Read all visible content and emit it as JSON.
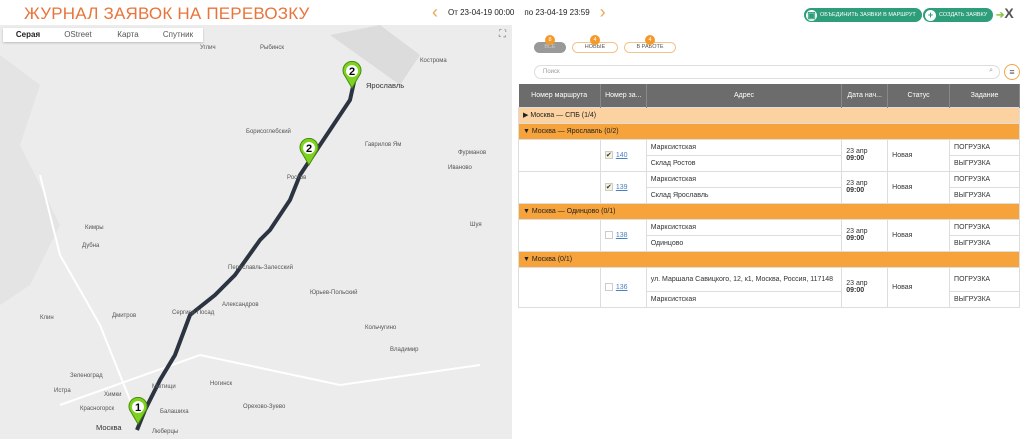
{
  "header": {
    "title": "ЖУРНАЛ ЗАЯВОК НА ПЕРЕВОЗКУ",
    "date_from": "От 23-04-19 00:00",
    "date_to": "по 23-04-19 23:59",
    "merge_button": "ОБЪЕДИНИТЬ ЗАЯВКИ В МАРШРУТ",
    "create_button": "СОЗДАТЬ ЗАЯВКУ"
  },
  "map": {
    "tabs": [
      "Серая",
      "OStreet",
      "Карта",
      "Спутник"
    ],
    "active_tab": "Серая",
    "cities": [
      "Кострома",
      "Ярославль",
      "Иваново",
      "Гаврилов Ям",
      "Борисоглебский",
      "Ростов",
      "Переславль-Залесский",
      "Сергиев Посад",
      "Александров",
      "Дмитров",
      "Клин",
      "Кимры",
      "Дубна",
      "Зеленоград",
      "Химки",
      "Мытищи",
      "Балашиха",
      "Москва",
      "Люберцы",
      "Красногорск",
      "Истра",
      "Ногинск",
      "Орехово-Зуево",
      "Владимир",
      "Юрьев-Польский",
      "Фурманов",
      "Шуя",
      "Кольчугино",
      "Углич",
      "Рыбинск"
    ],
    "markers": [
      "1",
      "2",
      "2"
    ]
  },
  "filters": [
    {
      "label": "ВСЕ",
      "count": "8"
    },
    {
      "label": "НОВЫЕ",
      "count": "4"
    },
    {
      "label": "В РАБОТЕ",
      "count": "4"
    }
  ],
  "search": {
    "placeholder": "Поиск"
  },
  "table": {
    "headers": [
      "Номер маршрута",
      "Номер за...",
      "Адрес",
      "Дата нач...",
      "Статус",
      "Задание"
    ],
    "groups": [
      {
        "label": "▶ Москва — СПБ   (1/4)",
        "collapsed": true,
        "rows": []
      },
      {
        "label": "▼ Москва — Ярославль   (0/2)",
        "rows": [
          {
            "id": "140",
            "checked": true,
            "addr": [
              "Марксистская",
              "Склад Ростов"
            ],
            "date": "23 апр",
            "time": "09:00",
            "status": "Новая",
            "tasks": [
              "ПОГРУЗКА",
              "ВЫГРУЗКА"
            ]
          },
          {
            "id": "139",
            "checked": true,
            "addr": [
              "Марксистская",
              "Склад Ярославль"
            ],
            "date": "23 апр",
            "time": "09:00",
            "status": "Новая",
            "tasks": [
              "ПОГРУЗКА",
              "ВЫГРУЗКА"
            ]
          }
        ]
      },
      {
        "label": "▼ Москва — Одинцово   (0/1)",
        "rows": [
          {
            "id": "138",
            "checked": false,
            "addr": [
              "Марксистская",
              "Одинцово"
            ],
            "date": "23 апр",
            "time": "09:00",
            "status": "Новая",
            "tasks": [
              "ПОГРУЗКА",
              "ВЫГРУЗКА"
            ]
          }
        ]
      },
      {
        "label": "▼ Москва   (0/1)",
        "rows": [
          {
            "id": "136",
            "checked": false,
            "addr": [
              "ул. Маршала Савицкого, 12, к1, Москва, Россия, 117148",
              "Марксистская"
            ],
            "date": "23 апр",
            "time": "09:00",
            "status": "Новая",
            "tasks": [
              "ПОГРУЗКА",
              "ВЫГРУЗКА"
            ]
          }
        ]
      }
    ]
  },
  "colors": {
    "accent": "#e8743b",
    "group": "#f6a33c",
    "green": "#2e9e7a",
    "route": "#2b3440"
  }
}
